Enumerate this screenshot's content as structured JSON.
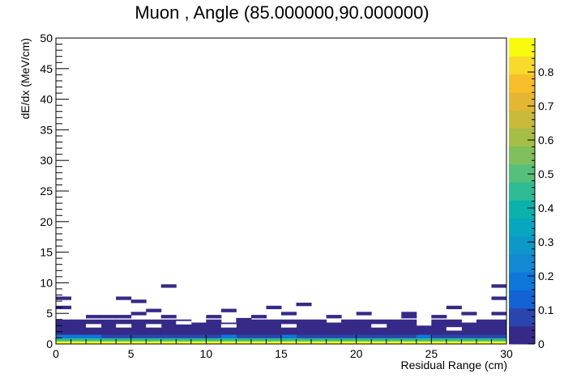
{
  "chart_data": {
    "type": "heatmap",
    "title": "Muon , Angle (85.000000,90.000000)",
    "xlabel": "Residual Range (cm)",
    "ylabel": "dE/dx (MeV/cm)",
    "xlim": [
      0,
      30
    ],
    "ylim": [
      0,
      50
    ],
    "x_ticks": [
      0,
      5,
      10,
      15,
      20,
      25,
      30
    ],
    "y_ticks": [
      0,
      5,
      10,
      15,
      20,
      25,
      30,
      35,
      40,
      45,
      50
    ],
    "bins": {
      "x_count": 30,
      "x_width": 1,
      "y_width": 0.5
    },
    "z_range": [
      0,
      0.9
    ],
    "colorbar_ticks": [
      0,
      0.1,
      0.2,
      0.3,
      0.4,
      0.5,
      0.6,
      0.7,
      0.8
    ],
    "palette": [
      "#352a87",
      "#2a46ad",
      "#1363d5",
      "#0f77db",
      "#1388d3",
      "#0d98c9",
      "#06a7bf",
      "#0bb2ac",
      "#2ebb94",
      "#56bf7a",
      "#7fbf5c",
      "#a6bd46",
      "#c8b93a",
      "#e5b632",
      "#f8be2a",
      "#f9d92a",
      "#f9fb0e"
    ],
    "column_top_values": [
      4.0,
      4.0,
      4.0,
      4.0,
      4.0,
      4.0,
      4.0,
      4.0,
      4.0,
      3.5,
      4.0,
      3.5,
      4.0,
      4.0,
      4.0,
      4.0,
      4.0,
      4.0,
      3.5,
      4.0,
      4.0,
      4.0,
      4.0,
      4.0,
      3.0,
      4.0,
      4.0,
      3.5,
      4.0,
      4.0
    ],
    "sparse_cells": [
      {
        "x": 0.5,
        "y": 6.0,
        "z": 0.05
      },
      {
        "x": 0.5,
        "y": 7.5,
        "z": 0.05
      },
      {
        "x": 2.5,
        "y": 4.5,
        "z": 0.05
      },
      {
        "x": 3.5,
        "y": 4.5,
        "z": 0.05
      },
      {
        "x": 4.5,
        "y": 4.5,
        "z": 0.05
      },
      {
        "x": 4.5,
        "y": 7.5,
        "z": 0.05
      },
      {
        "x": 5.5,
        "y": 5.0,
        "z": 0.05
      },
      {
        "x": 5.5,
        "y": 7.0,
        "z": 0.05
      },
      {
        "x": 6.5,
        "y": 5.5,
        "z": 0.05
      },
      {
        "x": 7.5,
        "y": 9.5,
        "z": 0.05
      },
      {
        "x": 7.5,
        "y": 4.5,
        "z": 0.05
      },
      {
        "x": 10.5,
        "y": 4.5,
        "z": 0.05
      },
      {
        "x": 11.5,
        "y": 5.5,
        "z": 0.05
      },
      {
        "x": 12.5,
        "y": 4.0,
        "z": 0.05
      },
      {
        "x": 13.5,
        "y": 4.5,
        "z": 0.05
      },
      {
        "x": 14.5,
        "y": 6.0,
        "z": 0.05
      },
      {
        "x": 15.5,
        "y": 5.0,
        "z": 0.05
      },
      {
        "x": 16.5,
        "y": 6.5,
        "z": 0.05
      },
      {
        "x": 18.5,
        "y": 4.5,
        "z": 0.05
      },
      {
        "x": 20.5,
        "y": 5.0,
        "z": 0.05
      },
      {
        "x": 23.5,
        "y": 4.5,
        "z": 0.05
      },
      {
        "x": 23.5,
        "y": 5.0,
        "z": 0.05
      },
      {
        "x": 25.5,
        "y": 4.5,
        "z": 0.05
      },
      {
        "x": 26.5,
        "y": 6.0,
        "z": 0.05
      },
      {
        "x": 27.5,
        "y": 5.0,
        "z": 0.05
      },
      {
        "x": 29.5,
        "y": 5.0,
        "z": 0.05
      },
      {
        "x": 29.5,
        "y": 7.5,
        "z": 0.05
      },
      {
        "x": 29.5,
        "y": 9.5,
        "z": 0.05
      }
    ],
    "gaps": [
      {
        "x": 2.5,
        "y": 3.0
      },
      {
        "x": 4.5,
        "y": 3.0
      },
      {
        "x": 6.5,
        "y": 3.0
      },
      {
        "x": 8.5,
        "y": 3.5
      },
      {
        "x": 11.5,
        "y": 3.0
      },
      {
        "x": 15.5,
        "y": 3.0
      },
      {
        "x": 21.5,
        "y": 3.0
      },
      {
        "x": 26.5,
        "y": 2.5
      }
    ],
    "low_rows": [
      {
        "y": 0.25,
        "z": 0.85
      },
      {
        "y": 0.75,
        "z": 0.45
      },
      {
        "y": 1.25,
        "z": 0.1
      }
    ],
    "grid": false,
    "legend": "none"
  }
}
